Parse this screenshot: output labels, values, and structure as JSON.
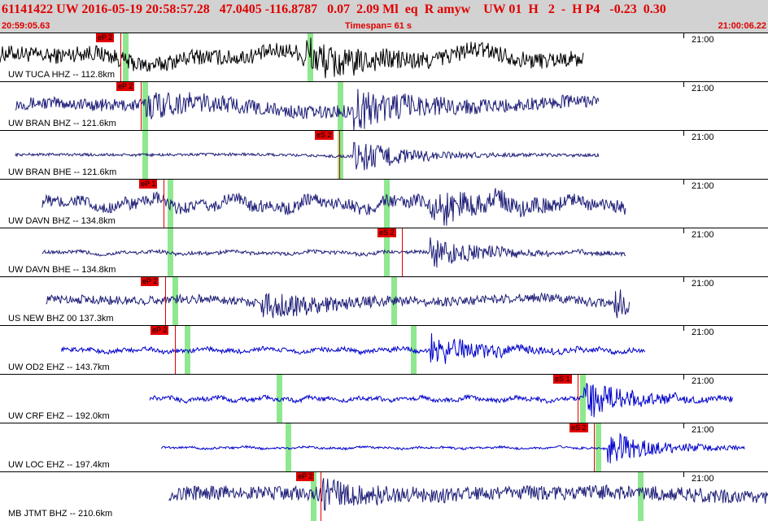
{
  "header": {
    "event_line": "61141422 UW 2016-05-19 20:58:57.28   47.0405 -116.8787   0.07  2.09 Ml  eq  R amyw    UW 01  H   2  -  H P4   -0.23  0.30",
    "start_time": "20:59:05.63",
    "timespan": "Timespan=  61 s",
    "end_time": "21:00:06.22"
  },
  "panels": [
    {
      "label": "UW TUCA HHZ -- 112.8km",
      "time_label": "21:00",
      "color": "#000000",
      "start": 0.0,
      "end": 0.76,
      "amp": 0.45,
      "freq": 1.2,
      "events": [
        [
          0.39,
          1.0
        ]
      ],
      "greens": [
        0.16,
        0.4
      ],
      "picks": [
        {
          "text": "eP 2",
          "x": 0.157
        }
      ]
    },
    {
      "label": "UW BRAN BHZ -- 121.6km",
      "time_label": "21:00",
      "color": "#1e1e78",
      "start": 0.02,
      "end": 0.78,
      "amp": 0.35,
      "freq": 0.6,
      "events": [
        [
          0.19,
          0.6
        ],
        [
          0.46,
          1.0
        ]
      ],
      "greens": [
        0.185,
        0.44
      ],
      "picks": [
        {
          "text": "eP 2",
          "x": 0.183
        }
      ]
    },
    {
      "label": "UW BRAN BHE -- 121.6km",
      "time_label": "21:00",
      "color": "#1e1e78",
      "start": 0.02,
      "end": 0.78,
      "amp": 0.08,
      "freq": 0.5,
      "events": [
        [
          0.46,
          1.0
        ]
      ],
      "greens": [
        0.185,
        0.44
      ],
      "picks": [
        {
          "text": "eS 2",
          "x": 0.442
        }
      ]
    },
    {
      "label": "UW DAVN BHZ -- 134.8km",
      "time_label": "21:00",
      "color": "#1e1e78",
      "start": 0.055,
      "end": 0.815,
      "amp": 0.35,
      "freq": 3.0,
      "events": [
        [
          0.56,
          0.9
        ]
      ],
      "greens": [
        0.218,
        0.5
      ],
      "picks": [
        {
          "text": "eP 1",
          "x": 0.213
        }
      ]
    },
    {
      "label": "UW DAVN BHE -- 134.8km",
      "time_label": "21:00",
      "color": "#1e1e78",
      "start": 0.055,
      "end": 0.815,
      "amp": 0.1,
      "freq": 3.0,
      "events": [
        [
          0.56,
          0.8
        ]
      ],
      "greens": [
        0.218,
        0.5
      ],
      "picks": [
        {
          "text": "eS 2",
          "x": 0.523
        }
      ]
    },
    {
      "label": "US NEW BHZ 00 137.3km",
      "time_label": "21:00",
      "color": "#1e1e78",
      "start": 0.06,
      "end": 0.82,
      "amp": 0.25,
      "freq": 0.7,
      "events": [
        [
          0.34,
          0.7
        ],
        [
          0.8,
          0.8
        ]
      ],
      "greens": [
        0.225,
        0.51
      ],
      "picks": [
        {
          "text": "eP 2",
          "x": 0.215
        }
      ]
    },
    {
      "label": "UW OD2 EHZ -- 143.7km",
      "time_label": "21:00",
      "color": "#0000cc",
      "start": 0.08,
      "end": 0.84,
      "amp": 0.12,
      "freq": 4.0,
      "events": [
        [
          0.56,
          0.9
        ]
      ],
      "greens": [
        0.24,
        0.535
      ],
      "picks": [
        {
          "text": "eP 2",
          "x": 0.228
        }
      ]
    },
    {
      "label": "UW CRF EHZ -- 192.0km",
      "time_label": "21:00",
      "color": "#0000cc",
      "start": 0.195,
      "end": 0.955,
      "amp": 0.12,
      "freq": 5.0,
      "events": [
        [
          0.76,
          1.0
        ]
      ],
      "greens": [
        0.36,
        0.755
      ],
      "picks": [
        {
          "text": "eS 1",
          "x": 0.752
        }
      ]
    },
    {
      "label": "UW LOC EHZ -- 197.4km",
      "time_label": "21:00",
      "color": "#0000cc",
      "start": 0.21,
      "end": 0.97,
      "amp": 0.06,
      "freq": 4.0,
      "events": [
        [
          0.79,
          0.9
        ]
      ],
      "greens": [
        0.372,
        0.775
      ],
      "picks": [
        {
          "text": "eS 2",
          "x": 0.773
        }
      ]
    },
    {
      "label": "MB JTMT BHZ -- 210.6km",
      "time_label": "21:00",
      "color": "#1e1e78",
      "start": 0.22,
      "end": 1.0,
      "amp": 0.4,
      "freq": 0.25,
      "events": [
        [
          0.42,
          0.6
        ]
      ],
      "greens": [
        0.405,
        0.83
      ],
      "picks": [
        {
          "text": "eP 2",
          "x": 0.417
        }
      ]
    }
  ]
}
